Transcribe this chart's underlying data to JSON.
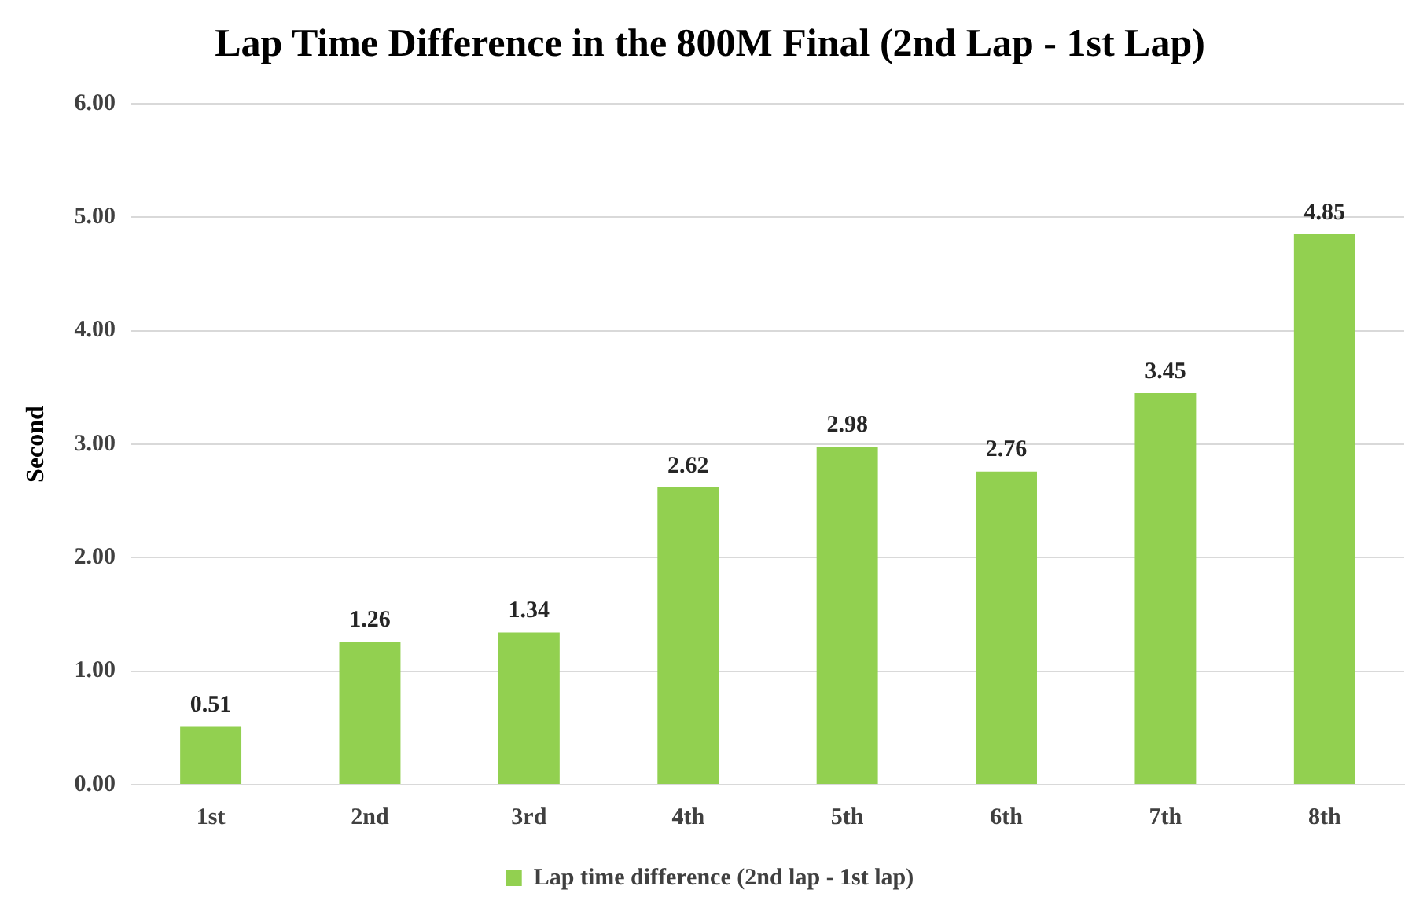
{
  "chart_data": {
    "type": "bar",
    "title": "Lap Time Difference in the 800M Final (2nd Lap - 1st Lap)",
    "ylabel": "Second",
    "categories": [
      "1st",
      "2nd",
      "3rd",
      "4th",
      "5th",
      "6th",
      "7th",
      "8th"
    ],
    "series": [
      {
        "name": "Lap time difference (2nd lap - 1st lap)",
        "color": "#92d050",
        "values": [
          0.51,
          1.26,
          1.34,
          2.62,
          2.98,
          2.76,
          3.45,
          4.85
        ]
      }
    ],
    "ylim": [
      0,
      6
    ],
    "yticks": [
      {
        "value": 0,
        "label": "0.00"
      },
      {
        "value": 1,
        "label": "1.00"
      },
      {
        "value": 2,
        "label": "2.00"
      },
      {
        "value": 3,
        "label": "3.00"
      },
      {
        "value": 4,
        "label": "4.00"
      },
      {
        "value": 5,
        "label": "5.00"
      },
      {
        "value": 6,
        "label": "6.00"
      }
    ],
    "grid": "y",
    "legend": "bottom",
    "data_labels": true
  }
}
